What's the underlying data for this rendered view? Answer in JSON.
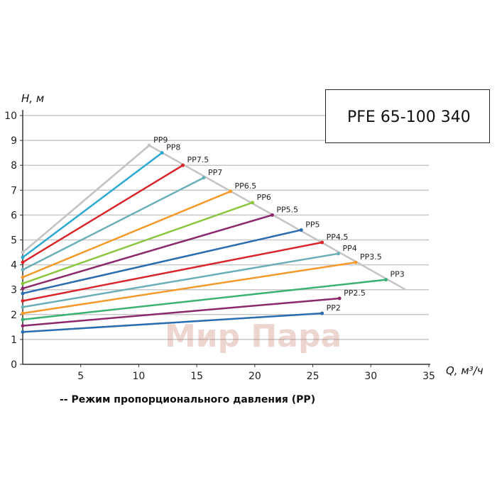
{
  "box_title": "PFE 65-100 340",
  "caption": "-- Режим пропорционального давления (PP)",
  "watermark": "Мир Пара",
  "colors": {
    "grid": "#c8c8c8",
    "axis": "#333333",
    "envelope": "#c4c4c4",
    "watermark": "#c47864"
  },
  "chart_data": {
    "type": "line",
    "xlabel": "Q, м³/ч",
    "ylabel": "H, м",
    "xlim": [
      0,
      35
    ],
    "ylim": [
      0,
      10
    ],
    "x_ticks": [
      5,
      10,
      15,
      20,
      25,
      30,
      35
    ],
    "y_ticks": [
      0,
      1,
      2,
      3,
      4,
      5,
      6,
      7,
      8,
      9,
      10
    ],
    "grid": "horizontal",
    "envelope": [
      [
        0,
        4.5
      ],
      [
        10.9,
        8.8
      ],
      [
        33.0,
        3.0
      ]
    ],
    "series": [
      {
        "name": "PP9",
        "color": "#c4c4c4",
        "x": [
          0,
          10.9
        ],
        "y": [
          4.5,
          8.8
        ]
      },
      {
        "name": "PP8",
        "color": "#2fa8d0",
        "x": [
          0,
          12.0
        ],
        "y": [
          4.3,
          8.5
        ]
      },
      {
        "name": "PP7.5",
        "color": "#d8262c",
        "x": [
          0,
          13.8
        ],
        "y": [
          4.1,
          8.0
        ]
      },
      {
        "name": "PP7",
        "color": "#6aafb8",
        "x": [
          0,
          15.6
        ],
        "y": [
          3.8,
          7.5
        ]
      },
      {
        "name": "PP6.5",
        "color": "#f39a2b",
        "x": [
          0,
          17.9
        ],
        "y": [
          3.5,
          6.95
        ]
      },
      {
        "name": "PP6",
        "color": "#8cc63f",
        "x": [
          0,
          19.8
        ],
        "y": [
          3.25,
          6.5
        ]
      },
      {
        "name": "PP5.5",
        "color": "#8b2a6b",
        "x": [
          0,
          21.5
        ],
        "y": [
          3.05,
          6.0
        ]
      },
      {
        "name": "PP5",
        "color": "#2a6cb0",
        "x": [
          0,
          24.0
        ],
        "y": [
          2.85,
          5.4
        ]
      },
      {
        "name": "PP4.5",
        "color": "#d8262c",
        "x": [
          0,
          25.8
        ],
        "y": [
          2.55,
          4.9
        ]
      },
      {
        "name": "PP4",
        "color": "#6aafb8",
        "x": [
          0,
          27.2
        ],
        "y": [
          2.3,
          4.45
        ]
      },
      {
        "name": "PP3.5",
        "color": "#f39a2b",
        "x": [
          0,
          28.7
        ],
        "y": [
          2.05,
          4.1
        ]
      },
      {
        "name": "PP3",
        "color": "#3bb273",
        "x": [
          0,
          31.3
        ],
        "y": [
          1.8,
          3.4
        ]
      },
      {
        "name": "PP2.5",
        "color": "#8b2a6b",
        "x": [
          0,
          27.3
        ],
        "y": [
          1.55,
          2.65
        ]
      },
      {
        "name": "PP2",
        "color": "#2a6cb0",
        "x": [
          0,
          25.8
        ],
        "y": [
          1.3,
          2.05
        ]
      }
    ]
  }
}
